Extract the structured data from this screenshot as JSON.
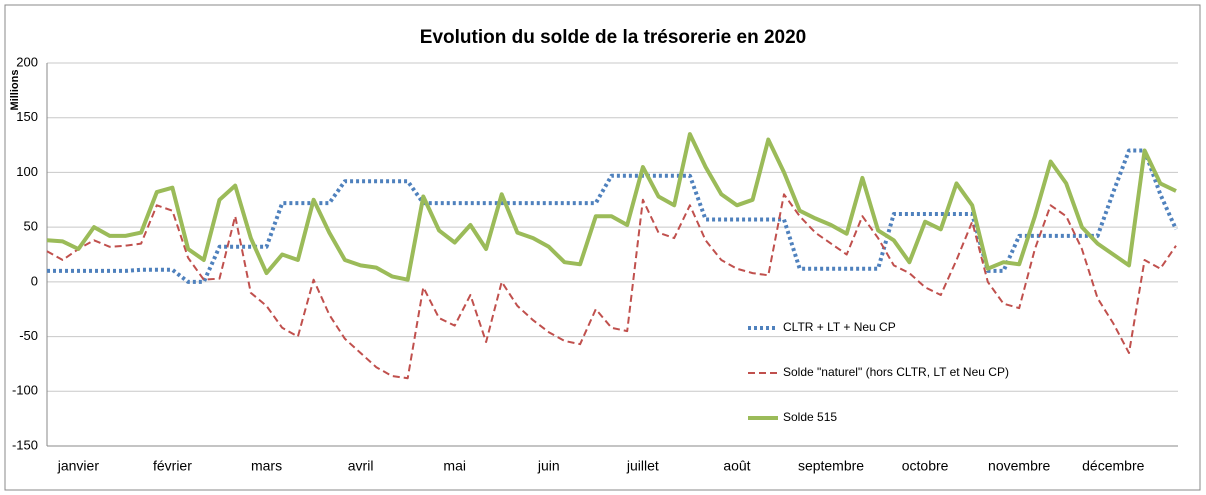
{
  "chart_data": {
    "type": "line",
    "title": "Evolution du solde de la trésorerie en 2020",
    "y_label": "Millions",
    "categories": [
      null,
      null,
      "janvier",
      null,
      null,
      null,
      null,
      null,
      "février",
      null,
      null,
      null,
      null,
      null,
      "mars",
      null,
      null,
      null,
      null,
      null,
      "avril",
      null,
      null,
      null,
      null,
      null,
      "mai",
      null,
      null,
      null,
      null,
      null,
      "juin",
      null,
      null,
      null,
      null,
      null,
      "juillet",
      null,
      null,
      null,
      null,
      null,
      "août",
      null,
      null,
      null,
      null,
      null,
      "septembre",
      null,
      null,
      null,
      null,
      null,
      "octobre",
      null,
      null,
      null,
      null,
      null,
      "novembre",
      null,
      null,
      null,
      null,
      null,
      "décembre",
      null,
      null,
      null,
      null
    ],
    "ylim": [
      -150,
      200
    ],
    "yticks": [
      -150,
      -100,
      -50,
      0,
      50,
      100,
      150,
      200
    ],
    "grid": true,
    "legend": "center-right",
    "series": [
      {
        "name": "CLTR + LT + Neu CP",
        "color": "#4f81bd",
        "style": "dotted",
        "values": [
          10,
          10,
          10,
          10,
          10,
          10,
          11,
          11,
          11,
          0,
          0,
          32,
          32,
          32,
          32,
          72,
          72,
          72,
          72,
          92,
          92,
          92,
          92,
          92,
          72,
          72,
          72,
          72,
          72,
          72,
          72,
          72,
          72,
          72,
          72,
          72,
          97,
          97,
          97,
          97,
          97,
          97,
          57,
          57,
          57,
          57,
          57,
          57,
          12,
          12,
          12,
          12,
          12,
          12,
          62,
          62,
          62,
          62,
          62,
          62,
          10,
          10,
          42,
          42,
          42,
          42,
          42,
          42,
          82,
          120,
          120,
          80,
          48
        ]
      },
      {
        "name": "Solde \"naturel\" (hors CLTR, LT et Neu CP)",
        "color": "#c0504d",
        "style": "dashed",
        "values": [
          28,
          20,
          30,
          38,
          32,
          33,
          35,
          70,
          65,
          22,
          2,
          3,
          60,
          -10,
          -22,
          -42,
          -50,
          2,
          -30,
          -52,
          -65,
          -78,
          -86,
          -88,
          -5,
          -33,
          -40,
          -12,
          -55,
          0,
          -22,
          -35,
          -46,
          -54,
          -57,
          -25,
          -42,
          -45,
          75,
          45,
          40,
          70,
          38,
          20,
          12,
          8,
          6,
          80,
          60,
          45,
          35,
          25,
          60,
          40,
          15,
          8,
          -5,
          -12,
          20,
          55,
          0,
          -20,
          -24,
          30,
          70,
          60,
          30,
          -15,
          -38,
          -65,
          20,
          12,
          33
        ]
      },
      {
        "name": "Solde 515",
        "color": "#9bbb59",
        "style": "solid",
        "values": [
          38,
          37,
          30,
          50,
          42,
          42,
          45,
          82,
          86,
          30,
          20,
          75,
          88,
          40,
          8,
          25,
          20,
          75,
          45,
          20,
          15,
          13,
          5,
          2,
          78,
          47,
          36,
          52,
          30,
          80,
          45,
          40,
          32,
          18,
          16,
          60,
          60,
          52,
          105,
          78,
          70,
          135,
          105,
          80,
          70,
          75,
          130,
          100,
          65,
          58,
          52,
          44,
          95,
          47,
          38,
          18,
          55,
          48,
          90,
          70,
          12,
          18,
          16,
          60,
          110,
          90,
          50,
          35,
          25,
          15,
          120,
          90,
          83
        ]
      }
    ]
  }
}
